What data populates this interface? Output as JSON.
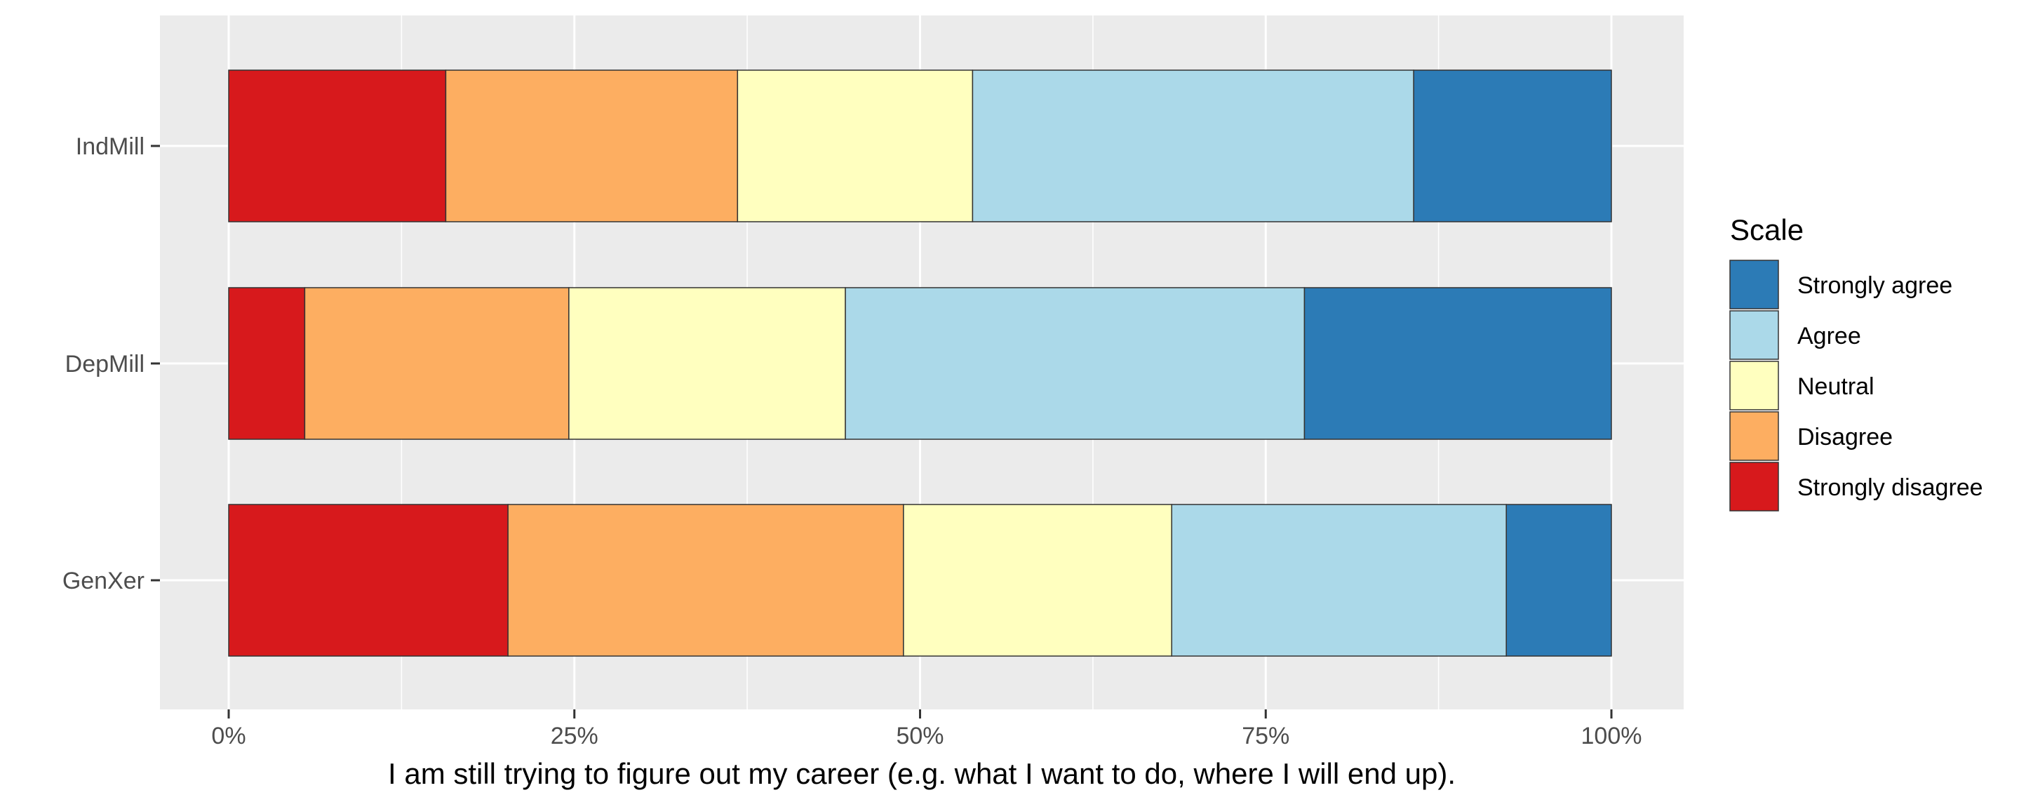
{
  "chart_data": {
    "type": "bar",
    "orientation": "horizontal",
    "stacked": "percent",
    "title": "",
    "xlabel": "I am still trying to figure out my career (e.g. what I want to do, where I will end up).",
    "ylabel": "",
    "xlim": [
      0,
      1
    ],
    "xticks": [
      0,
      0.25,
      0.5,
      0.75,
      1
    ],
    "xtick_labels": [
      "0%",
      "25%",
      "50%",
      "75%",
      "100%"
    ],
    "grid": true,
    "categories": [
      "GenXer",
      "DepMill",
      "IndMill"
    ],
    "series": [
      {
        "name": "Strongly disagree",
        "color": "#d7191c",
        "values": [
          0.202,
          0.055,
          0.157
        ]
      },
      {
        "name": "Disagree",
        "color": "#fdae61",
        "values": [
          0.286,
          0.191,
          0.211
        ]
      },
      {
        "name": "Neutral",
        "color": "#ffffbf",
        "values": [
          0.194,
          0.2,
          0.17
        ]
      },
      {
        "name": "Agree",
        "color": "#abd9e9",
        "values": [
          0.242,
          0.332,
          0.319
        ]
      },
      {
        "name": "Strongly agree",
        "color": "#2c7bb6",
        "values": [
          0.076,
          0.222,
          0.143
        ]
      }
    ],
    "legend": {
      "title": "Scale",
      "position": "right",
      "order": [
        "Strongly agree",
        "Agree",
        "Neutral",
        "Disagree",
        "Strongly disagree"
      ]
    }
  }
}
